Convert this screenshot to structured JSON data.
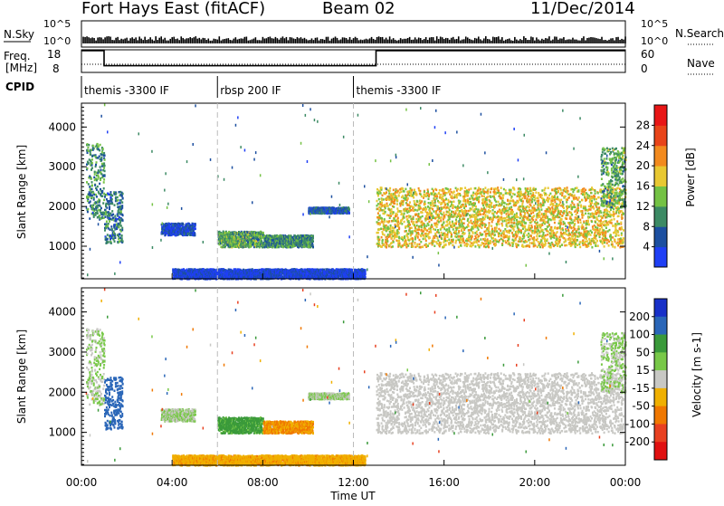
{
  "header": {
    "station": "Fort Hays East (fitACF)",
    "beam": "Beam 02",
    "date": "11/Dec/2014"
  },
  "nsky_panel": {
    "label": "N.Sky",
    "left_ticks": [
      "10^5",
      "10^0"
    ],
    "right_ticks": [
      "10^5",
      "10^0"
    ],
    "right_label": "N.Search",
    "right_label_style": "dotted"
  },
  "freq_panel": {
    "label_line1": "Freq.",
    "label_line2": "[MHz]",
    "left_ticks": [
      "18",
      "8"
    ],
    "right_ticks": [
      "60",
      "0"
    ],
    "right_label": "Nave",
    "right_label_style": "dotted",
    "freq_series_mhz": [
      {
        "t": 0.0,
        "v": 18
      },
      {
        "t": 1.0,
        "v": 18
      },
      {
        "t": 1.0,
        "v": 10.8
      },
      {
        "t": 13.0,
        "v": 10.8
      },
      {
        "t": 13.0,
        "v": 18
      },
      {
        "t": 24.0,
        "v": 18
      }
    ]
  },
  "cpid": {
    "label": "CPID",
    "segments": [
      {
        "start": 0.0,
        "end": 6.0,
        "text": "themis -3300 IF"
      },
      {
        "start": 6.0,
        "end": 12.0,
        "text": "rbsp 200 IF"
      },
      {
        "start": 12.0,
        "end": 24.0,
        "text": "themis -3300 IF"
      }
    ]
  },
  "power_panel": {
    "ylabel": "Slant Range [km]",
    "ymin": 180,
    "ymax": 4600,
    "yticks": [
      1000,
      2000,
      3000,
      4000
    ],
    "colorbar": {
      "label": "Power [dB]",
      "ticks": [
        "4",
        "8",
        "12",
        "16",
        "20",
        "24",
        "28"
      ],
      "colors": [
        "#1f3ff5",
        "#1c4fa0",
        "#3c8a64",
        "#74c244",
        "#e8c832",
        "#f28a1e",
        "#e84419",
        "#e81616"
      ]
    }
  },
  "velocity_panel": {
    "ylabel": "Slant Range [km]",
    "ymin": 180,
    "ymax": 4600,
    "yticks": [
      1000,
      2000,
      3000,
      4000
    ],
    "colorbar": {
      "label": "Velocity [m s-1]",
      "ticks": [
        "200",
        "100",
        "50",
        "15",
        "-15",
        "-50",
        "-100",
        "-200"
      ],
      "colors": [
        "#1830c8",
        "#2a66b8",
        "#3a9a3a",
        "#78c848",
        "#c8c8c4",
        "#f0b000",
        "#f07800",
        "#e84020",
        "#e01010"
      ]
    }
  },
  "x_axis": {
    "label": "Time UT",
    "ticks": [
      "00:00",
      "04:00",
      "08:00",
      "12:00",
      "16:00",
      "20:00",
      "00:00"
    ],
    "tick_hours": [
      0,
      4,
      8,
      12,
      16,
      20,
      24
    ],
    "dashed_hours": [
      6,
      12
    ]
  },
  "chart_data": {
    "type": "heatmap",
    "xlabel": "Time UT",
    "ylabel": "Slant Range [km]",
    "xlim_hours": [
      0,
      24
    ],
    "ylim_km": [
      180,
      4600
    ],
    "echo_regions": [
      {
        "t_start": 0.2,
        "t_end": 1.0,
        "r_low": 1700,
        "r_high": 3600,
        "power_db": 12,
        "velocity": 15
      },
      {
        "t_start": 1.0,
        "t_end": 1.8,
        "r_low": 1100,
        "r_high": 2400,
        "power_db": 10,
        "velocity": 100
      },
      {
        "t_start": 3.5,
        "t_end": 5.0,
        "r_low": 1300,
        "r_high": 1600,
        "power_db": 6,
        "velocity": 15
      },
      {
        "t_start": 6.0,
        "t_end": 8.0,
        "r_low": 1000,
        "r_high": 1400,
        "power_db": 14,
        "velocity": 40
      },
      {
        "t_start": 8.0,
        "t_end": 10.2,
        "r_low": 1000,
        "r_high": 1300,
        "power_db": 12,
        "velocity": -50
      },
      {
        "t_start": 4.0,
        "t_end": 12.5,
        "r_low": 200,
        "r_high": 450,
        "power_db": 5,
        "velocity": -40
      },
      {
        "t_start": 10.0,
        "t_end": 11.8,
        "r_low": 1850,
        "r_high": 2000,
        "power_db": 8,
        "velocity": 15
      },
      {
        "t_start": 13.0,
        "t_end": 23.9,
        "r_low": 1000,
        "r_high": 2500,
        "power_db": 20,
        "velocity": 0
      },
      {
        "t_start": 22.9,
        "t_end": 24.0,
        "r_low": 2000,
        "r_high": 3500,
        "power_db": 14,
        "velocity": 15
      }
    ]
  }
}
